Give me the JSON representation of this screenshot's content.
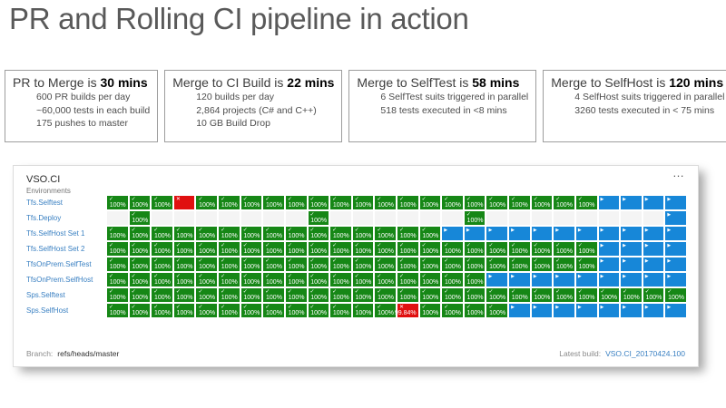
{
  "page_title": "PR and Rolling CI pipeline in action",
  "stat_boxes": [
    {
      "title": "PR to Merge is",
      "duration": "30 mins",
      "lines": [
        "600 PR builds per day",
        "~60,000 tests in each build",
        "175 pushes to master"
      ]
    },
    {
      "title": "Merge to CI Build is",
      "duration": "22 mins",
      "lines": [
        "120 builds per day",
        "2,864 projects (C# and C++)",
        "10 GB Build Drop"
      ]
    },
    {
      "title": "Merge to SelfTest is",
      "duration": "58 mins",
      "lines": [
        "6 SelfTest suits triggered in parallel",
        "518 tests executed in <8 mins"
      ]
    },
    {
      "title": "Merge to SelfHost is",
      "duration": "120 mins",
      "lines": [
        "4 SelfHost suits triggered in parallel",
        "3260 tests executed in < 75 mins"
      ]
    }
  ],
  "panel": {
    "title": "VSO.CI",
    "menu_glyph": "…",
    "environments_label": "Environments",
    "columns": 26,
    "rows": [
      {
        "label": "Tfs.Selftest",
        "cells": "gggxggggggggggggggggggbbbb"
      },
      {
        "label": "Tfs.Deploy",
        "cells": ".g.......g......g........b"
      },
      {
        "label": "Tfs.SelfHost Set 1",
        "cells": "gggggggggggggggbbbbbbbbbbb"
      },
      {
        "label": "Tfs.SelfHost Set 2",
        "cells": "ggggggggggggggggggggggbbbb"
      },
      {
        "label": "TfsOnPrem.SelfTest",
        "cells": "ggggggggggggggggggggggbbbb"
      },
      {
        "label": "TfsOnPrem.SelfHost",
        "cells": "gggggggggggggggggbbbbbbbbb"
      },
      {
        "label": "Sps.Selftest",
        "cells": "gggggggggggggggggggggggggg"
      },
      {
        "label": "Sps.SelfHost",
        "cells": "gggggggggggggfggggbbbbbbbb"
      }
    ],
    "cell_types": {
      "g": {
        "status": "succeeded",
        "glyph": "✓",
        "glyph_name": "check-icon",
        "label": "100%",
        "color": "#168716"
      },
      "x": {
        "status": "failed",
        "glyph": "✕",
        "glyph_name": "x-icon",
        "label": "",
        "color": "#e01010"
      },
      "f": {
        "status": "failed",
        "glyph": "✕",
        "glyph_name": "x-icon",
        "label": "99.84%",
        "color": "#e01010"
      },
      "b": {
        "status": "in-progress",
        "glyph": "▶",
        "glyph_name": "play-icon",
        "label": "",
        "color": "#1787d8"
      },
      ".": {
        "status": "empty",
        "glyph": "",
        "glyph_name": "",
        "label": "",
        "color": "#f4f4f4"
      }
    },
    "footer": {
      "branch_label": "Branch:",
      "branch_value": "refs/heads/master",
      "latest_build_label": "Latest build:",
      "latest_build_value": "VSO.CI_20170424.100"
    }
  },
  "colors": {
    "succeeded": "#168716",
    "failed": "#e01010",
    "in_progress": "#1787d8",
    "row_link": "#3a80c2",
    "build_link": "#3a80c2"
  }
}
